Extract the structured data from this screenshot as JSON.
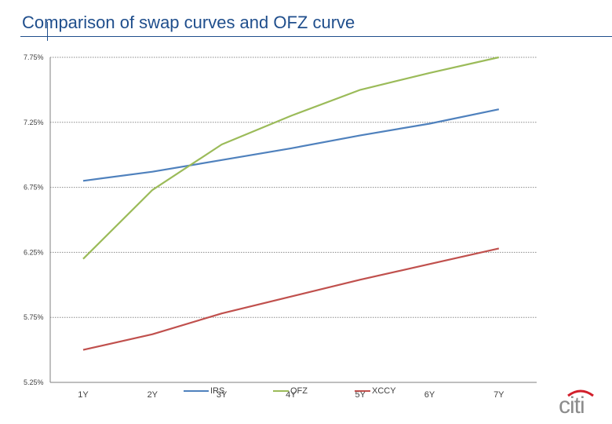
{
  "page": {
    "title": "Comparison of swap curves and OFZ curve"
  },
  "chart_data": {
    "type": "line",
    "title": "",
    "xlabel": "",
    "ylabel": "",
    "categories": [
      "1Y",
      "2Y",
      "3Y",
      "4Y",
      "5Y",
      "6Y",
      "7Y"
    ],
    "ylim": [
      5.25,
      7.75
    ],
    "y_ticks": [
      7.75,
      7.25,
      6.75,
      6.25,
      5.75,
      5.25
    ],
    "y_tick_labels": [
      "7.75%",
      "7.25%",
      "6.75%",
      "6.25%",
      "5.75%",
      "5.25%"
    ],
    "grid": true,
    "legend": "bottom",
    "series": [
      {
        "name": "IRS",
        "color": "#4f81bd",
        "values": [
          6.8,
          6.87,
          6.96,
          7.05,
          7.15,
          7.24,
          7.35
        ]
      },
      {
        "name": "OFZ",
        "color": "#9bbb59",
        "values": [
          6.2,
          6.73,
          7.08,
          7.3,
          7.5,
          7.63,
          7.75
        ]
      },
      {
        "name": "XCCY",
        "color": "#c0504d",
        "values": [
          5.5,
          5.62,
          5.78,
          5.91,
          6.04,
          6.16,
          6.28
        ]
      }
    ]
  },
  "logo": {
    "text": "citi",
    "arc_color": "#d21f2b",
    "text_color": "#8c8c8c"
  }
}
